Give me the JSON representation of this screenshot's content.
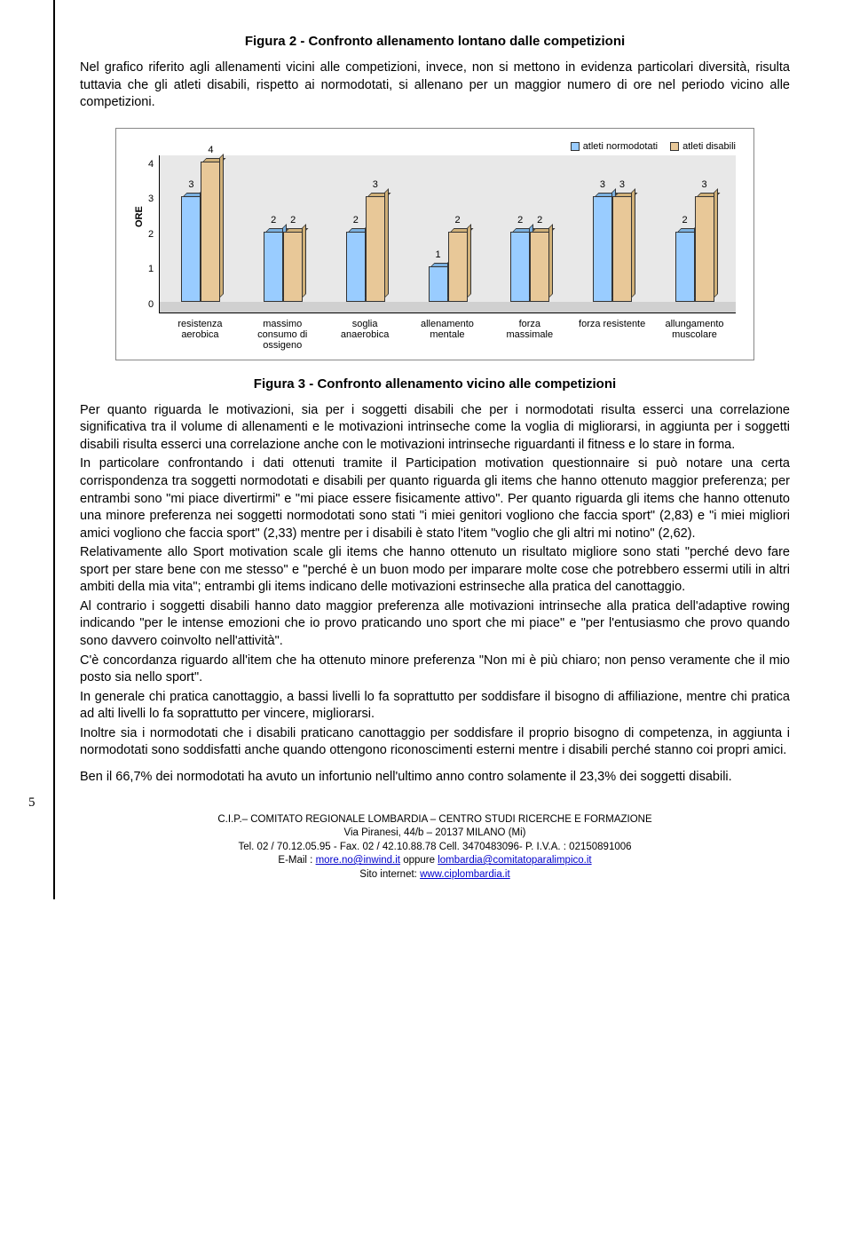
{
  "figure2_title": "Figura 2 - Confronto allenamento lontano dalle competizioni",
  "intro_para": "Nel grafico riferito agli allenamenti vicini alle competizioni, invece, non si mettono in evidenza particolari diversità, risulta tuttavia che gli atleti disabili, rispetto ai normodotati, si allenano per un maggior numero di ore nel periodo vicino alle competizioni.",
  "chart": {
    "legend": {
      "series1": "atleti normodotati",
      "series2": "atleti disabili"
    },
    "colors": {
      "series1": "#99ccff",
      "series2": "#e8c898",
      "series1_side": "#7ab0e0",
      "series2_side": "#d0b078",
      "plot_bg": "#e8e8e8"
    },
    "y_label": "ORE",
    "y_ticks": [
      "4",
      "3",
      "2",
      "1",
      "0"
    ],
    "y_max": 4,
    "categories": [
      {
        "label": "resistenza aerobica",
        "v1": 3,
        "v2": 4
      },
      {
        "label": "massimo consumo di ossigeno",
        "v1": 2,
        "v2": 2
      },
      {
        "label": "soglia anaerobica",
        "v1": 2,
        "v2": 3
      },
      {
        "label": "allenamento mentale",
        "v1": 1,
        "v2": 2
      },
      {
        "label": "forza massimale",
        "v1": 2,
        "v2": 2
      },
      {
        "label": "forza resistente",
        "v1": 3,
        "v2": 3
      },
      {
        "label": "allungamento muscolare",
        "v1": 2,
        "v2": 3
      }
    ]
  },
  "figure3_title": "Figura 3 -   Confronto allenamento vicino alle competizioni",
  "body_paras": [
    "Per quanto riguarda le motivazioni, sia per i soggetti disabili che per i normodotati risulta esserci una correlazione significativa tra il volume di allenamenti e le motivazioni intrinseche come la voglia di migliorarsi, in aggiunta per i soggetti disabili risulta esserci una correlazione anche con le motivazioni intrinseche riguardanti il fitness e lo stare in forma.",
    "In particolare confrontando i dati ottenuti tramite il Participation motivation questionnaire si può notare una certa corrispondenza tra soggetti normodotati e disabili per quanto riguarda gli items che hanno ottenuto maggior preferenza; per entrambi sono \"mi piace divertirmi\" e \"mi piace essere fisicamente attivo\". Per quanto riguarda gli items che hanno ottenuto una minore preferenza nei soggetti normodotati sono stati \"i miei genitori vogliono che faccia sport\" (2,83) e \"i miei migliori amici vogliono che faccia sport\" (2,33) mentre per i disabili è stato l'item \"voglio che gli altri mi notino\" (2,62).",
    "Relativamente allo Sport motivation scale gli items che hanno ottenuto un risultato migliore sono stati \"perché devo fare sport per stare bene con me stesso\" e \"perché è un buon modo per imparare molte cose che potrebbero essermi utili in altri ambiti della mia vita\"; entrambi gli items indicano delle motivazioni estrinseche alla pratica del canottaggio.",
    "Al contrario i soggetti disabili hanno dato maggior preferenza alle motivazioni intrinseche alla pratica dell'adaptive rowing indicando \"per le intense emozioni che io provo praticando uno sport che mi piace\" e \"per l'entusiasmo che provo quando sono davvero coinvolto nell'attività\".",
    "C'è concordanza riguardo all'item che ha ottenuto minore preferenza \"Non mi è più chiaro; non penso veramente che il mio posto sia nello sport\".",
    "In generale chi pratica canottaggio, a bassi livelli lo fa soprattutto per soddisfare il bisogno di affiliazione, mentre chi pratica ad alti livelli lo fa soprattutto per vincere, migliorarsi.",
    "Inoltre sia i normodotati che i disabili praticano canottaggio per soddisfare il proprio bisogno di competenza, in aggiunta i normodotati sono soddisfatti anche quando ottengono riconoscimenti esterni mentre i disabili perché stanno coi propri amici."
  ],
  "final_para": "Ben il 66,7% dei normodotati ha avuto un infortunio nell'ultimo anno contro solamente il 23,3% dei soggetti disabili.",
  "footer": {
    "line1": "C.I.P.– COMITATO REGIONALE LOMBARDIA – CENTRO STUDI RICERCHE E FORMAZIONE",
    "line2": "Via Piranesi, 44/b – 20137 MILANO (Mi)",
    "line3": "Tel. 02 / 70.12.05.95 - Fax. 02 / 42.10.88.78 Cell. 3470483096- P. I.V.A. : 02150891006",
    "email_prefix": "E-Mail : ",
    "email1": "more.no@inwind.it",
    "email_mid": " oppure ",
    "email2": "lombardia@comitatoparalimpico.it",
    "site_prefix": "Sito internet: ",
    "site": "www.ciplombardia.it"
  },
  "page_number": "5"
}
